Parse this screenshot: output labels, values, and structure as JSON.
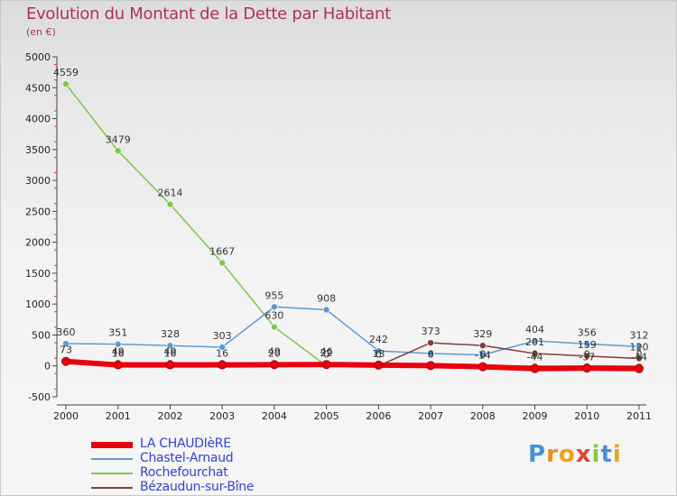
{
  "title": "Evolution du Montant de la Dette par Habitant",
  "unit": "(en €)",
  "logo": [
    "P",
    "r",
    "o",
    "x",
    "i",
    "t",
    "i"
  ],
  "chart_data": {
    "type": "line",
    "x": [
      "2000",
      "2001",
      "2002",
      "2003",
      "2004",
      "2005",
      "2006",
      "2007",
      "2008",
      "2009",
      "2010",
      "2011"
    ],
    "ylim": [
      -500,
      5000
    ],
    "yticks": [
      -500,
      0,
      500,
      1000,
      1500,
      2000,
      2500,
      3000,
      3500,
      4000,
      4500,
      5000
    ],
    "grid": false,
    "legend_position": "bottom-left",
    "series": [
      {
        "name": "LA CHAUDIèRE",
        "color": "#e8000e",
        "values": [
          73,
          16,
          16,
          16,
          20,
          22,
          13,
          6,
          -14,
          -44,
          -37,
          -44
        ],
        "labels": [
          "73",
          "16",
          "16",
          "16",
          "20",
          "22",
          "13",
          "6",
          "-14",
          "-44",
          "-37",
          "-44"
        ]
      },
      {
        "name": "Chastel-Arnaud",
        "color": "#5b9bd5",
        "values": [
          360,
          351,
          328,
          303,
          955,
          908,
          242,
          200,
          178,
          404,
          356,
          312
        ],
        "labels": [
          "360",
          "351",
          "328",
          "303",
          "955",
          "908",
          "242",
          "",
          "",
          "404",
          "356",
          "312"
        ]
      },
      {
        "name": "Rochefourchat",
        "color": "#7ac943",
        "values": [
          4559,
          3479,
          2614,
          1667,
          630,
          0,
          0,
          0,
          0,
          0,
          0,
          0
        ],
        "labels": [
          "4559",
          "3479",
          "2614",
          "1667",
          "630",
          "0",
          "0",
          "0",
          "0",
          "0",
          "0",
          "0"
        ]
      },
      {
        "name": "Bézaudun-sur-Bîne",
        "color": "#8b3a3a",
        "values": [
          49,
          49,
          49,
          49,
          49,
          46,
          0,
          373,
          329,
          201,
          159,
          120
        ],
        "labels": [
          "",
          "49",
          "49",
          "",
          "49",
          "46",
          "",
          "373",
          "329",
          "201",
          "159",
          "120"
        ]
      }
    ]
  }
}
